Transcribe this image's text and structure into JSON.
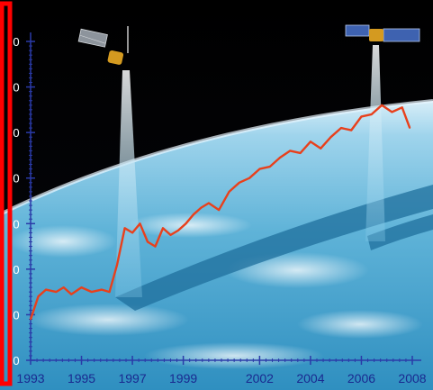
{
  "chart_data": {
    "type": "line",
    "title": "",
    "xlabel": "",
    "ylabel": "",
    "x_tick_labels": [
      "1993",
      "1995",
      "1997",
      "1999",
      "2002",
      "2004",
      "2006",
      "2008"
    ],
    "y_tick_labels": [
      "0",
      "0",
      "0",
      "0",
      "0",
      "0",
      "0",
      "0"
    ],
    "xlim": [
      1993.0,
      2008.0
    ],
    "ylim": [
      0,
      7
    ],
    "grid": false,
    "series": [
      {
        "color": "#e8401c",
        "x": [
          1993.0,
          1993.3,
          1993.6,
          1994.0,
          1994.3,
          1994.6,
          1995.0,
          1995.4,
          1995.8,
          1996.1,
          1996.4,
          1996.7,
          1997.0,
          1997.3,
          1997.6,
          1997.9,
          1998.2,
          1998.5,
          1998.8,
          1999.1,
          1999.4,
          1999.7,
          2000.0,
          2000.4,
          2000.8,
          2001.2,
          2001.6,
          2002.0,
          2002.4,
          2002.8,
          2003.2,
          2003.6,
          2004.0,
          2004.4,
          2004.8,
          2005.2,
          2005.6,
          2006.0,
          2006.4,
          2006.8,
          2007.2,
          2007.6,
          2007.9
        ],
        "y": [
          0.9,
          1.4,
          1.55,
          1.5,
          1.6,
          1.45,
          1.6,
          1.5,
          1.55,
          1.5,
          2.1,
          2.9,
          2.8,
          3.0,
          2.6,
          2.5,
          2.9,
          2.75,
          2.85,
          3.0,
          3.2,
          3.35,
          3.45,
          3.3,
          3.7,
          3.9,
          4.0,
          4.2,
          4.25,
          4.45,
          4.6,
          4.55,
          4.8,
          4.65,
          4.9,
          5.1,
          5.05,
          5.35,
          5.4,
          5.6,
          5.45,
          5.55,
          5.1
        ]
      }
    ]
  }
}
